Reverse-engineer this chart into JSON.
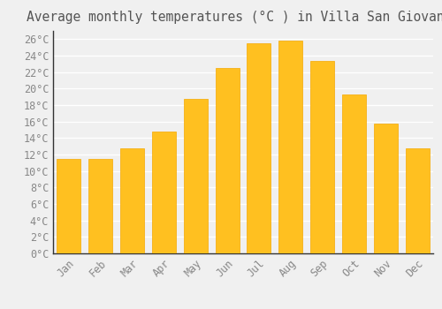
{
  "title": "Average monthly temperatures (°C ) in Villa San Giovanni",
  "months": [
    "Jan",
    "Feb",
    "Mar",
    "Apr",
    "May",
    "Jun",
    "Jul",
    "Aug",
    "Sep",
    "Oct",
    "Nov",
    "Dec"
  ],
  "values": [
    11.5,
    11.5,
    12.7,
    14.8,
    18.7,
    22.5,
    25.5,
    25.8,
    23.4,
    19.3,
    15.7,
    12.7
  ],
  "bar_color": "#FFC020",
  "bar_edge_color": "#F5A800",
  "background_color": "#F0F0F0",
  "grid_color": "#FFFFFF",
  "ylim": [
    0,
    27
  ],
  "ytick_step": 2,
  "title_fontsize": 10.5,
  "tick_fontsize": 8.5,
  "tick_font_family": "monospace",
  "title_color": "#555555",
  "tick_color": "#888888"
}
